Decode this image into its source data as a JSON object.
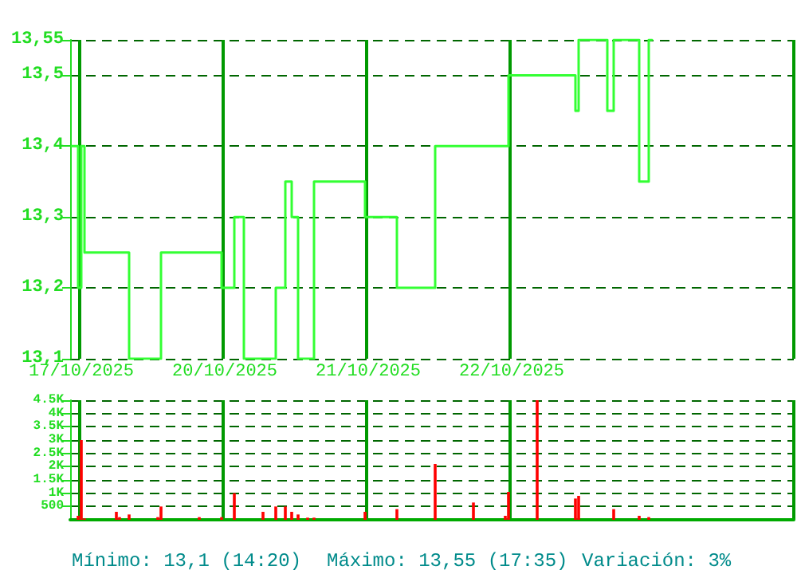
{
  "chart_data": [
    {
      "type": "step",
      "color": "#33ff33",
      "grid": true,
      "categories": [
        null,
        null,
        null,
        "17/10/2025",
        null,
        null,
        null,
        null,
        null,
        null,
        null,
        null,
        null,
        null,
        null,
        null,
        null,
        null,
        null,
        null,
        null,
        null,
        null,
        null,
        null,
        null,
        null,
        null,
        null,
        null,
        null,
        null,
        null,
        null,
        null,
        null,
        null,
        null,
        null,
        null,
        null,
        null,
        null,
        null,
        null,
        null,
        null,
        null,
        "20/10/2025",
        null,
        null,
        null,
        null,
        null,
        null,
        null,
        null,
        null,
        null,
        null,
        null,
        null,
        null,
        null,
        null,
        null,
        null,
        null,
        null,
        null,
        null,
        null,
        null,
        null,
        null,
        null,
        null,
        null,
        null,
        null,
        null,
        null,
        null,
        null,
        null,
        null,
        null,
        null,
        null,
        null,
        null,
        null,
        null,
        "21/10/2025",
        null,
        null,
        null,
        null,
        null,
        null,
        null,
        null,
        null,
        null,
        null,
        null,
        null,
        null,
        null,
        null,
        null,
        null,
        null,
        null,
        null,
        null,
        null,
        null,
        null,
        null,
        null,
        null,
        null,
        null,
        null,
        null,
        null,
        null,
        null,
        null,
        null,
        null,
        null,
        null,
        null,
        null,
        null,
        null,
        "22/10/2025",
        null,
        null,
        null,
        null,
        null,
        null,
        null,
        null,
        null,
        null,
        null,
        null,
        null,
        null,
        null,
        null,
        null,
        null,
        null,
        null,
        null,
        null,
        null,
        null,
        null,
        null,
        null,
        null,
        null,
        null,
        null,
        null,
        null,
        null,
        null,
        null,
        null,
        null,
        null,
        null,
        null,
        null,
        null,
        null,
        null,
        null,
        null,
        null,
        null,
        null,
        null,
        null,
        null,
        null,
        null,
        null,
        null,
        null,
        null,
        null,
        null,
        null,
        null,
        null,
        null,
        null,
        null,
        null,
        null,
        null,
        null,
        null,
        null,
        null,
        null,
        null,
        null,
        null,
        null,
        null,
        null,
        null,
        null,
        null,
        null,
        null,
        null,
        null
      ],
      "ylim": [
        13.1,
        13.55
      ],
      "yticks": [
        {
          "value": 13.1,
          "label": "13,1"
        },
        {
          "value": 13.2,
          "label": "13,2"
        },
        {
          "value": 13.3,
          "label": "13,3"
        },
        {
          "value": 13.4,
          "label": "13,4"
        },
        {
          "value": 13.5,
          "label": "13,5"
        },
        {
          "value": 13.55,
          "label": "13,55"
        }
      ],
      "values": [
        13.4,
        13.4,
        13.2,
        13.4,
        13.25,
        13.25,
        13.25,
        13.25,
        13.25,
        13.25,
        13.25,
        13.25,
        13.25,
        13.25,
        13.25,
        13.25,
        13.25,
        13.25,
        13.1,
        13.1,
        13.1,
        13.1,
        13.1,
        13.1,
        13.1,
        13.1,
        13.1,
        13.1,
        13.25,
        13.25,
        13.25,
        13.25,
        13.25,
        13.25,
        13.25,
        13.25,
        13.25,
        13.25,
        13.25,
        13.25,
        13.25,
        13.25,
        13.25,
        13.25,
        13.25,
        13.25,
        13.25,
        13.2,
        13.2,
        13.2,
        13.2,
        13.3,
        13.3,
        13.3,
        13.1,
        13.1,
        13.1,
        13.1,
        13.1,
        13.1,
        13.1,
        13.1,
        13.1,
        13.1,
        13.2,
        13.2,
        13.2,
        13.35,
        13.35,
        13.3,
        13.3,
        13.1,
        13.1,
        13.1,
        13.1,
        13.1,
        13.35,
        13.35,
        13.35,
        13.35,
        13.35,
        13.35,
        13.35,
        13.35,
        13.35,
        13.35,
        13.35,
        13.35,
        13.35,
        13.35,
        13.35,
        13.35,
        13.3,
        13.3,
        13.3,
        13.3,
        13.3,
        13.3,
        13.3,
        13.3,
        13.3,
        13.3,
        13.2,
        13.2,
        13.2,
        13.2,
        13.2,
        13.2,
        13.2,
        13.2,
        13.2,
        13.2,
        13.2,
        13.2,
        13.4,
        13.4,
        13.4,
        13.4,
        13.4,
        13.4,
        13.4,
        13.4,
        13.4,
        13.4,
        13.4,
        13.4,
        13.4,
        13.4,
        13.4,
        13.4,
        13.4,
        13.4,
        13.4,
        13.4,
        13.4,
        13.4,
        13.4,
        13.5,
        13.5,
        13.5,
        13.5,
        13.5,
        13.5,
        13.5,
        13.5,
        13.5,
        13.5,
        13.5,
        13.5,
        13.5,
        13.5,
        13.5,
        13.5,
        13.5,
        13.5,
        13.5,
        13.5,
        13.5,
        13.45,
        13.55,
        13.55,
        13.55,
        13.55,
        13.55,
        13.55,
        13.55,
        13.55,
        13.55,
        13.45,
        13.45,
        13.55,
        13.55,
        13.55,
        13.55,
        13.55,
        13.55,
        13.55,
        13.55,
        13.35,
        13.35,
        13.35,
        13.55,
        null,
        null,
        null,
        null,
        null,
        null,
        null,
        null,
        null,
        null,
        null,
        null,
        null,
        null,
        null,
        null,
        null,
        null,
        null,
        null,
        null,
        null,
        null,
        null,
        null,
        null,
        null,
        null,
        null,
        null,
        null,
        null,
        null,
        null,
        null,
        null,
        null,
        null,
        null,
        null,
        null,
        null,
        null,
        null,
        null
      ]
    },
    {
      "type": "bar",
      "color": "#ff0000",
      "grid": true,
      "categories": [
        null,
        null,
        null,
        null,
        null,
        null,
        null,
        null,
        null,
        null,
        null,
        null,
        null,
        null,
        null,
        null,
        null,
        null,
        null,
        null,
        null,
        null,
        null,
        null,
        null,
        null,
        null,
        null,
        null,
        null,
        null,
        null,
        null,
        null,
        null,
        null,
        null,
        null,
        null,
        null,
        null,
        null,
        null,
        null,
        null,
        null,
        null,
        null,
        null,
        null,
        null,
        null,
        null,
        null,
        null,
        null,
        null,
        null,
        null,
        null,
        null,
        null,
        null,
        null,
        null,
        null,
        null,
        null,
        null,
        null,
        null,
        null,
        null,
        null,
        null,
        null,
        null,
        null,
        null,
        null,
        null,
        null,
        null,
        null,
        null,
        null,
        null,
        null,
        null,
        null,
        null,
        null,
        null,
        null,
        null,
        null,
        null,
        null,
        null,
        null,
        null,
        null,
        null,
        null,
        null,
        null,
        null,
        null,
        null,
        null,
        null,
        null,
        null,
        null,
        null,
        null,
        null,
        null,
        null,
        null,
        null,
        null,
        null,
        null,
        null,
        null,
        null,
        null,
        null,
        null,
        null,
        null,
        null,
        null,
        null,
        null,
        null,
        null,
        null,
        null,
        null,
        null,
        null,
        null,
        null,
        null,
        null,
        null,
        null,
        null,
        null,
        null,
        null,
        null,
        null,
        null,
        null,
        null,
        null,
        null,
        null,
        null,
        null,
        null,
        null,
        null,
        null,
        null,
        null,
        null,
        null,
        null,
        null,
        null,
        null,
        null,
        null,
        null,
        null,
        null,
        null,
        null,
        null,
        null,
        null,
        null,
        null,
        null,
        null,
        null,
        null,
        null,
        null,
        null,
        null,
        null,
        null,
        null,
        null,
        null,
        null,
        null,
        null,
        null,
        null,
        null,
        null,
        null,
        null,
        null,
        null,
        null,
        null,
        null,
        null,
        null,
        null,
        null,
        null,
        null,
        null,
        null,
        null,
        null,
        null,
        null,
        null
      ],
      "ylim": [
        0,
        4500
      ],
      "yticks": [
        {
          "value": 500,
          "label": "500"
        },
        {
          "value": 1000,
          "label": "1K"
        },
        {
          "value": 1500,
          "label": "1.5K"
        },
        {
          "value": 2000,
          "label": "2K"
        },
        {
          "value": 2500,
          "label": "2.5K"
        },
        {
          "value": 3000,
          "label": "3K"
        },
        {
          "value": 3500,
          "label": "3.5K"
        },
        {
          "value": 4000,
          "label": "4K"
        },
        {
          "value": 4500,
          "label": "4.5K"
        }
      ],
      "values": [
        null,
        null,
        150,
        3000,
        50,
        null,
        null,
        null,
        null,
        null,
        null,
        null,
        null,
        null,
        300,
        100,
        null,
        null,
        200,
        null,
        null,
        null,
        null,
        null,
        null,
        null,
        null,
        100,
        500,
        null,
        null,
        null,
        null,
        null,
        null,
        null,
        null,
        null,
        null,
        null,
        100,
        null,
        null,
        null,
        null,
        null,
        null,
        100,
        null,
        null,
        null,
        1000,
        null,
        null,
        null,
        null,
        null,
        null,
        null,
        null,
        300,
        null,
        null,
        null,
        500,
        null,
        null,
        500,
        null,
        300,
        null,
        200,
        null,
        null,
        80,
        null,
        80,
        null,
        null,
        null,
        null,
        null,
        null,
        null,
        null,
        null,
        null,
        null,
        null,
        null,
        null,
        null,
        300,
        null,
        null,
        null,
        null,
        null,
        null,
        null,
        null,
        null,
        400,
        null,
        null,
        null,
        null,
        null,
        null,
        null,
        null,
        null,
        null,
        null,
        2100,
        null,
        null,
        null,
        null,
        null,
        null,
        null,
        null,
        null,
        null,
        null,
        650,
        null,
        null,
        null,
        null,
        null,
        null,
        null,
        null,
        null,
        150,
        1050,
        null,
        null,
        null,
        null,
        null,
        null,
        null,
        null,
        4500,
        null,
        null,
        null,
        null,
        null,
        null,
        null,
        null,
        null,
        null,
        null,
        800,
        900,
        null,
        null,
        null,
        null,
        null,
        null,
        null,
        null,
        null,
        null,
        400,
        null,
        null,
        null,
        null,
        null,
        null,
        null,
        150,
        null,
        null,
        100,
        null,
        null,
        null,
        null,
        null,
        null,
        null,
        null,
        null,
        null,
        null,
        null,
        null,
        null,
        null,
        null,
        null,
        null,
        null,
        null,
        null,
        null,
        null,
        null,
        null,
        null,
        null,
        null,
        null,
        null,
        null,
        null,
        null,
        null,
        null,
        null,
        null,
        null,
        null,
        null,
        null,
        null,
        null,
        null,
        null
      ],
      "annotations": [
        "Mínimo: 13,1 (14:20)",
        "Máximo: 13,55 (17:35)",
        "Variación: 3%"
      ]
    }
  ]
}
